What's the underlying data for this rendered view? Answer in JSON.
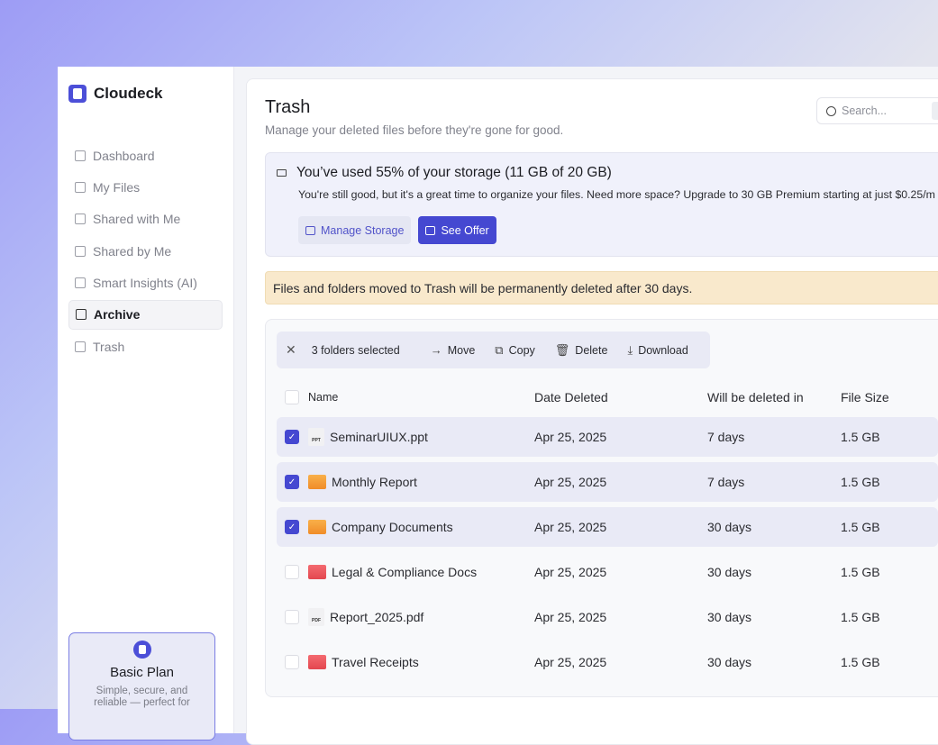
{
  "app": {
    "name": "Cloudeck"
  },
  "sidebar": {
    "items": [
      {
        "label": "Dashboard",
        "icon": "home-icon"
      },
      {
        "label": "My Files",
        "icon": "files-icon"
      },
      {
        "label": "Shared with Me",
        "icon": "file-download-icon"
      },
      {
        "label": "Shared by Me",
        "icon": "file-upload-icon"
      },
      {
        "label": "Smart Insights (AI)",
        "icon": "robot-icon"
      },
      {
        "label": "Archive",
        "icon": "archive-icon",
        "active": true
      },
      {
        "label": "Trash",
        "icon": "trash-icon"
      }
    ],
    "plan": {
      "title": "Basic Plan",
      "desc": "Simple, secure, and reliable — perfect for"
    }
  },
  "header": {
    "title": "Trash",
    "subtitle": "Manage your deleted files before they're gone for good.",
    "search_placeholder": "Search..."
  },
  "storage": {
    "title": "You’ve used 55% of your storage (11 GB of 20 GB)",
    "used_percent": 55,
    "message": "You're still good, but it's a great time to organize your files. Need more space? Upgrade to 30 GB Premium starting at just $0.25/m",
    "manage_label": "Manage Storage",
    "offer_label": "See Offer"
  },
  "warning": "Files and folders moved to Trash will be permanently deleted after 30 days.",
  "bulk": {
    "selected": "3 folders selected",
    "move": "Move",
    "copy": "Copy",
    "delete": "Delete",
    "download": "Download"
  },
  "table": {
    "columns": [
      "Name",
      "Date Deleted",
      "Will be deleted in",
      "File Size"
    ],
    "rows": [
      {
        "name": "SeminarUIUX.ppt",
        "type": "PPT",
        "date": "Apr 25, 2025",
        "remaining": "7 days",
        "size": "1.5 GB",
        "checked": true
      },
      {
        "name": "Monthly Report",
        "type": "orange",
        "date": "Apr 25, 2025",
        "remaining": "7 days",
        "size": "1.5 GB",
        "checked": true
      },
      {
        "name": "Company Documents",
        "type": "orange",
        "date": "Apr 25, 2025",
        "remaining": "30 days",
        "size": "1.5 GB",
        "checked": true
      },
      {
        "name": "Legal & Compliance Docs",
        "type": "red",
        "date": "Apr 25, 2025",
        "remaining": "30 days",
        "size": "1.5 GB",
        "checked": false
      },
      {
        "name": "Report_2025.pdf",
        "type": "PDF",
        "date": "Apr 25, 2025",
        "remaining": "30 days",
        "size": "1.5 GB",
        "checked": false
      },
      {
        "name": "Travel Receipts",
        "type": "red",
        "date": "Apr 25, 2025",
        "remaining": "30 days",
        "size": "1.5 GB",
        "checked": false
      }
    ]
  },
  "colors": {
    "accent": "#4548d1",
    "warning_bg": "#f9e9cc",
    "selected_row": "#e9eaf6"
  }
}
